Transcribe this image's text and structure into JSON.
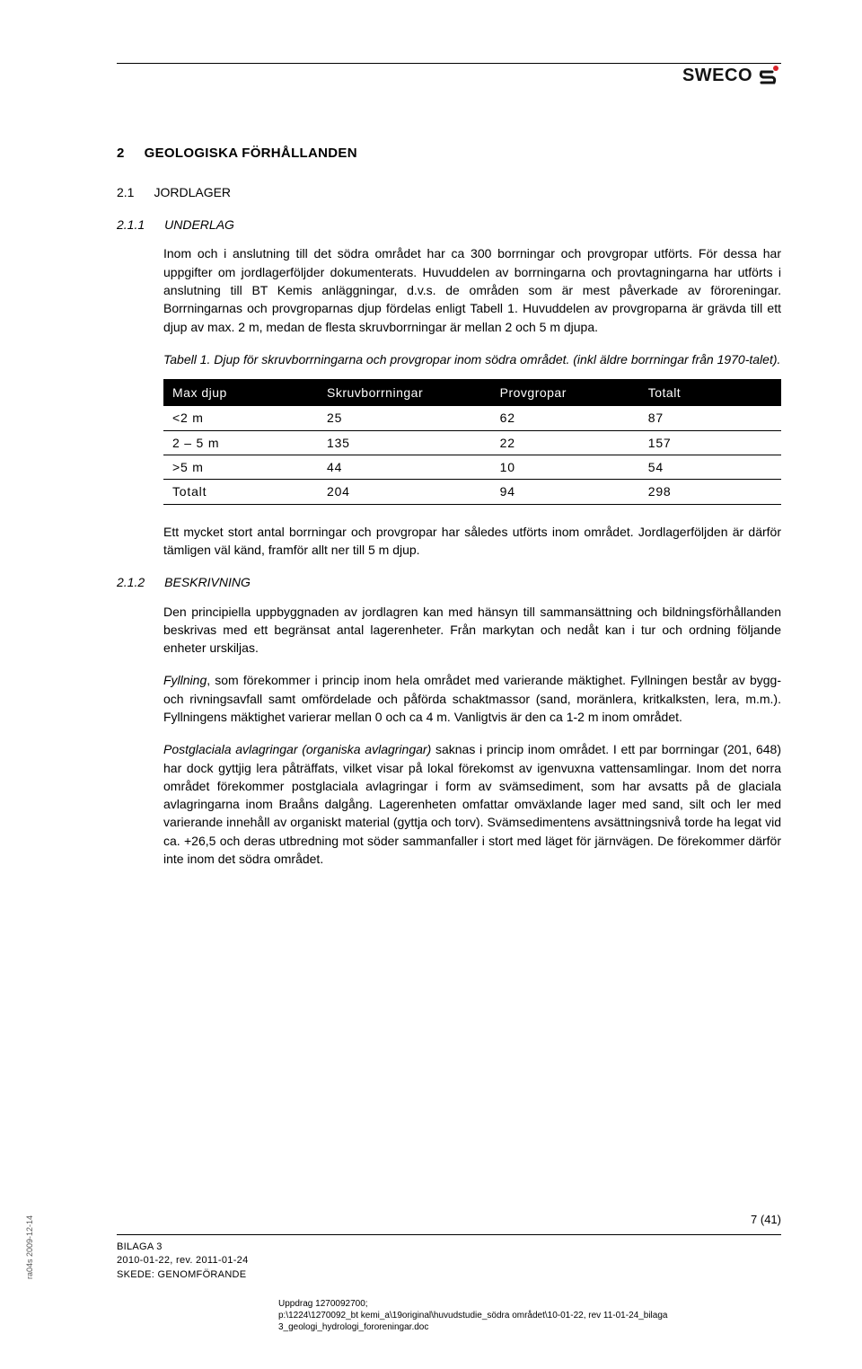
{
  "brand": {
    "name": "SWECO"
  },
  "section": {
    "num": "2",
    "title": "GEOLOGISKA FÖRHÅLLANDEN",
    "sub_num": "2.1",
    "sub_title": "JORDLAGER",
    "subsub_num": "2.1.1",
    "subsub_title": "UNDERLAG",
    "subsub2_num": "2.1.2",
    "subsub2_title": "BESKRIVNING"
  },
  "paragraphs": {
    "p1": "Inom och i anslutning till det södra området har ca 300 borrningar och provgropar utförts. För dessa har uppgifter om jordlagerföljder dokumenterats. Huvuddelen av borrningarna och provtagningarna har utförts i anslutning till BT Kemis anläggningar, d.v.s. de områden som är mest påverkade av föroreningar. Borrningarnas och provgroparnas djup fördelas enligt Tabell 1. Huvuddelen av provgroparna är grävda till ett djup av max. 2 m, medan de flesta skruvborrningar är mellan 2 och 5 m djupa.",
    "caption": "Tabell 1. Djup för skruvborrningarna och provgropar inom södra området. (inkl äldre borrningar från 1970-talet).",
    "p2": "Ett mycket stort antal borrningar och provgropar har således utförts inom området. Jordlagerföljden är därför tämligen väl känd, framför allt ner till 5 m djup.",
    "p3": "Den principiella uppbyggnaden av jordlagren kan med hänsyn till sammansättning och bildningsförhållanden beskrivas med ett begränsat antal lagerenheter. Från markytan och nedåt kan i tur och ordning följande enheter urskiljas.",
    "p4_lead": "Fyllning",
    "p4_rest": ", som förekommer i princip inom hela området med varierande mäktighet. Fyllningen består av bygg- och rivningsavfall samt omfördelade och påförda schaktmassor (sand, moränlera, kritkalksten, lera, m.m.). Fyllningens mäktighet varierar mellan 0 och ca 4 m. Vanligtvis är den ca 1-2 m inom området.",
    "p5_lead": "Postglaciala avlagringar (organiska avlagringar)",
    "p5_rest": " saknas i princip inom området. I ett par borrningar (201, 648) har dock gyttjig lera påträffats, vilket visar på lokal förekomst av igenvuxna vattensamlingar. Inom det norra området förekommer postglaciala avlagringar i form av svämsediment, som har avsatts på de glaciala avlagringarna inom Braåns dalgång. Lagerenheten omfattar omväxlande lager med sand, silt och ler med varierande innehåll av organiskt material (gyttja och torv). Svämsedimentens avsättningsnivå torde ha legat vid ca. +26,5 och deras utbredning mot söder sammanfaller i stort med läget för järnvägen. De förekommer därför inte inom det södra området."
  },
  "table": {
    "columns": [
      "Max djup",
      "Skruvborrningar",
      "Provgropar",
      "Totalt"
    ],
    "rows": [
      [
        "<2 m",
        "25",
        "62",
        "87"
      ],
      [
        "2 – 5 m",
        "135",
        "22",
        "157"
      ],
      [
        ">5 m",
        "44",
        "10",
        "54"
      ],
      [
        "Totalt",
        "204",
        "94",
        "298"
      ]
    ],
    "header_bg": "#000000",
    "header_fg": "#ffffff",
    "border_color": "#000000",
    "col_widths": [
      "25%",
      "28%",
      "24%",
      "23%"
    ]
  },
  "footer": {
    "page": "7 (41)",
    "line1": "BILAGA 3",
    "line2": "2010-01-22, rev. 2011-01-24",
    "line3": "SKEDE: GENOMFÖRANDE",
    "small1": "Uppdrag 1270092700;",
    "small2": "p:\\1224\\1270092_bt kemi_a\\19original\\huvudstudie_södra området\\10-01-22, rev 11-01-24_bilaga 3_geologi_hydrologi_fororeningar.doc",
    "side": "ra04s 2009-12-14"
  }
}
